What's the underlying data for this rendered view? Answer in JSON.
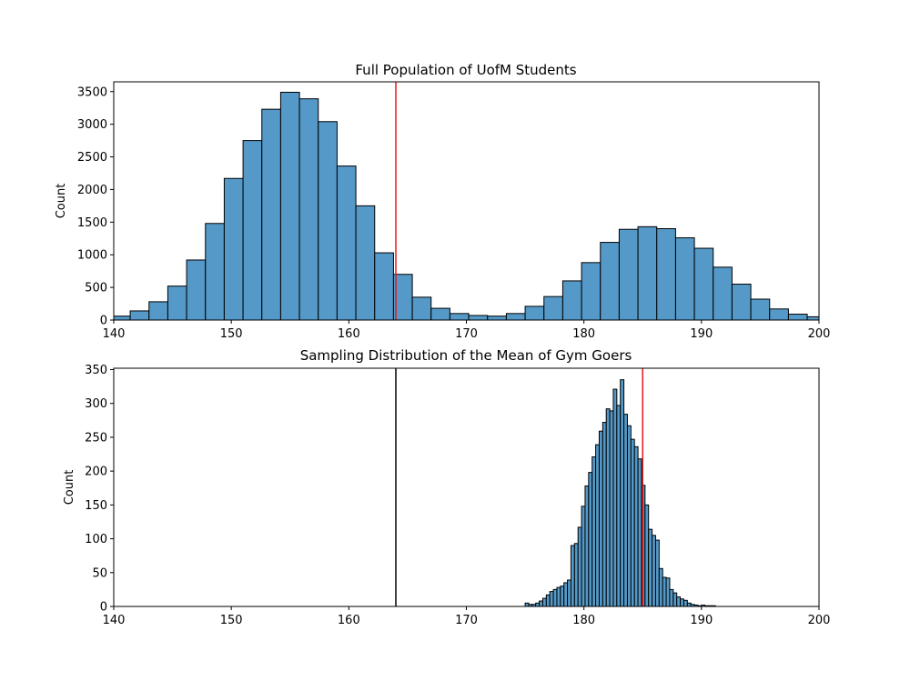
{
  "chart_data": [
    {
      "type": "histogram",
      "title": "Full Population of UofM Students",
      "xlabel": "",
      "ylabel": "Count",
      "xlim": [
        140,
        200
      ],
      "ylim": [
        0,
        3650
      ],
      "xticks": [
        140,
        150,
        160,
        170,
        180,
        190,
        200
      ],
      "yticks": [
        0,
        500,
        1000,
        1500,
        2000,
        2500,
        3000,
        3500
      ],
      "bar_color": "#5499c7",
      "bin_edges": [
        139.8,
        141.4,
        143.0,
        144.6,
        146.2,
        147.8,
        149.4,
        151.0,
        152.6,
        154.2,
        155.8,
        157.4,
        159.0,
        160.6,
        162.2,
        163.8,
        165.4,
        167.0,
        168.6,
        170.2,
        171.8,
        173.4,
        175.0,
        176.6,
        178.2,
        179.8,
        181.4,
        183.0,
        184.6,
        186.2,
        187.8,
        189.4,
        191.0,
        192.6,
        194.2,
        195.8,
        197.4,
        199.0,
        200.6
      ],
      "counts": [
        60,
        140,
        280,
        520,
        920,
        1480,
        2170,
        2750,
        3230,
        3490,
        3390,
        3040,
        2360,
        1750,
        1030,
        700,
        350,
        180,
        100,
        70,
        60,
        100,
        210,
        360,
        600,
        880,
        1190,
        1390,
        1430,
        1400,
        1260,
        1100,
        810,
        550,
        320,
        170,
        90,
        50
      ],
      "vlines": [
        {
          "x": 164.0,
          "color": "#e41a1c"
        }
      ]
    },
    {
      "type": "histogram",
      "title": "Sampling Distribution of the Mean of Gym Goers",
      "xlabel": "",
      "ylabel": "Count",
      "xlim": [
        140,
        200
      ],
      "ylim": [
        0,
        352
      ],
      "xticks": [
        140,
        150,
        160,
        170,
        180,
        190,
        200
      ],
      "yticks": [
        0,
        50,
        100,
        150,
        200,
        250,
        300,
        350
      ],
      "bar_color": "#5499c7",
      "bin_start": 175.0,
      "bin_width": 0.3,
      "counts": [
        5,
        3,
        3,
        5,
        8,
        12,
        17,
        22,
        25,
        28,
        30,
        35,
        39,
        90,
        93,
        117,
        148,
        178,
        198,
        221,
        239,
        259,
        272,
        292,
        289,
        321,
        297,
        335,
        284,
        267,
        247,
        236,
        218,
        179,
        150,
        114,
        105,
        98,
        56,
        43,
        42,
        25,
        20,
        14,
        11,
        9,
        5,
        3,
        2,
        1,
        2,
        1,
        1,
        1
      ],
      "vlines": [
        {
          "x": 164.0,
          "color": "#000000"
        },
        {
          "x": 185.0,
          "color": "#e41a1c"
        }
      ]
    }
  ]
}
